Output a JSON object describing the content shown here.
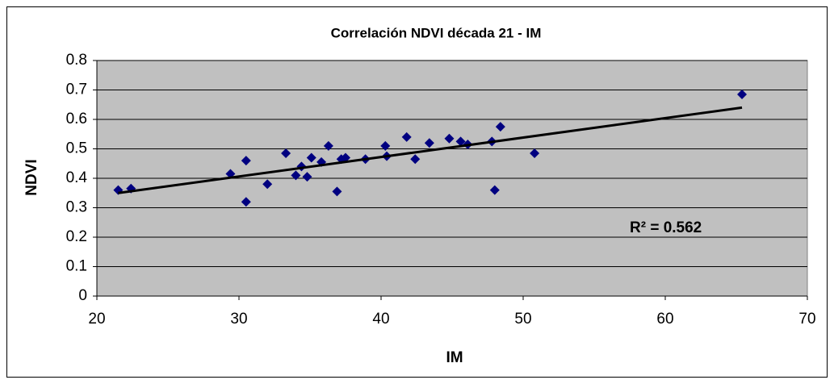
{
  "chart_data": {
    "type": "scatter",
    "title": "Correlación NDVI década 21 - IM",
    "xlabel": "IM",
    "ylabel": "NDVI",
    "x": [
      21.5,
      22.4,
      29.4,
      30.5,
      30.5,
      32.0,
      33.3,
      34.0,
      34.4,
      34.8,
      35.1,
      35.8,
      36.3,
      36.9,
      37.2,
      37.5,
      38.9,
      40.3,
      40.4,
      41.8,
      42.4,
      43.4,
      44.8,
      45.6,
      46.1,
      47.8,
      48.0,
      48.4,
      50.8,
      65.4
    ],
    "y": [
      0.36,
      0.365,
      0.415,
      0.46,
      0.32,
      0.38,
      0.485,
      0.41,
      0.44,
      0.405,
      0.47,
      0.455,
      0.51,
      0.355,
      0.465,
      0.47,
      0.465,
      0.51,
      0.475,
      0.54,
      0.465,
      0.52,
      0.535,
      0.525,
      0.515,
      0.525,
      0.36,
      0.575,
      0.485,
      0.685
    ],
    "color": "#000080",
    "trendline": {
      "x": [
        21.5,
        65.4
      ],
      "y": [
        0.35,
        0.64
      ],
      "color": "#000000"
    },
    "annotation": "R² = 0.562",
    "xlim": [
      20,
      70
    ],
    "xticks": [
      20,
      30,
      40,
      50,
      60,
      70
    ],
    "ylim": [
      0,
      0.8
    ],
    "yticks": [
      0,
      0.1,
      0.2,
      0.3,
      0.4,
      0.5,
      0.6,
      0.7,
      0.8
    ],
    "grid": true,
    "plot_background": "#c0c0c0"
  }
}
